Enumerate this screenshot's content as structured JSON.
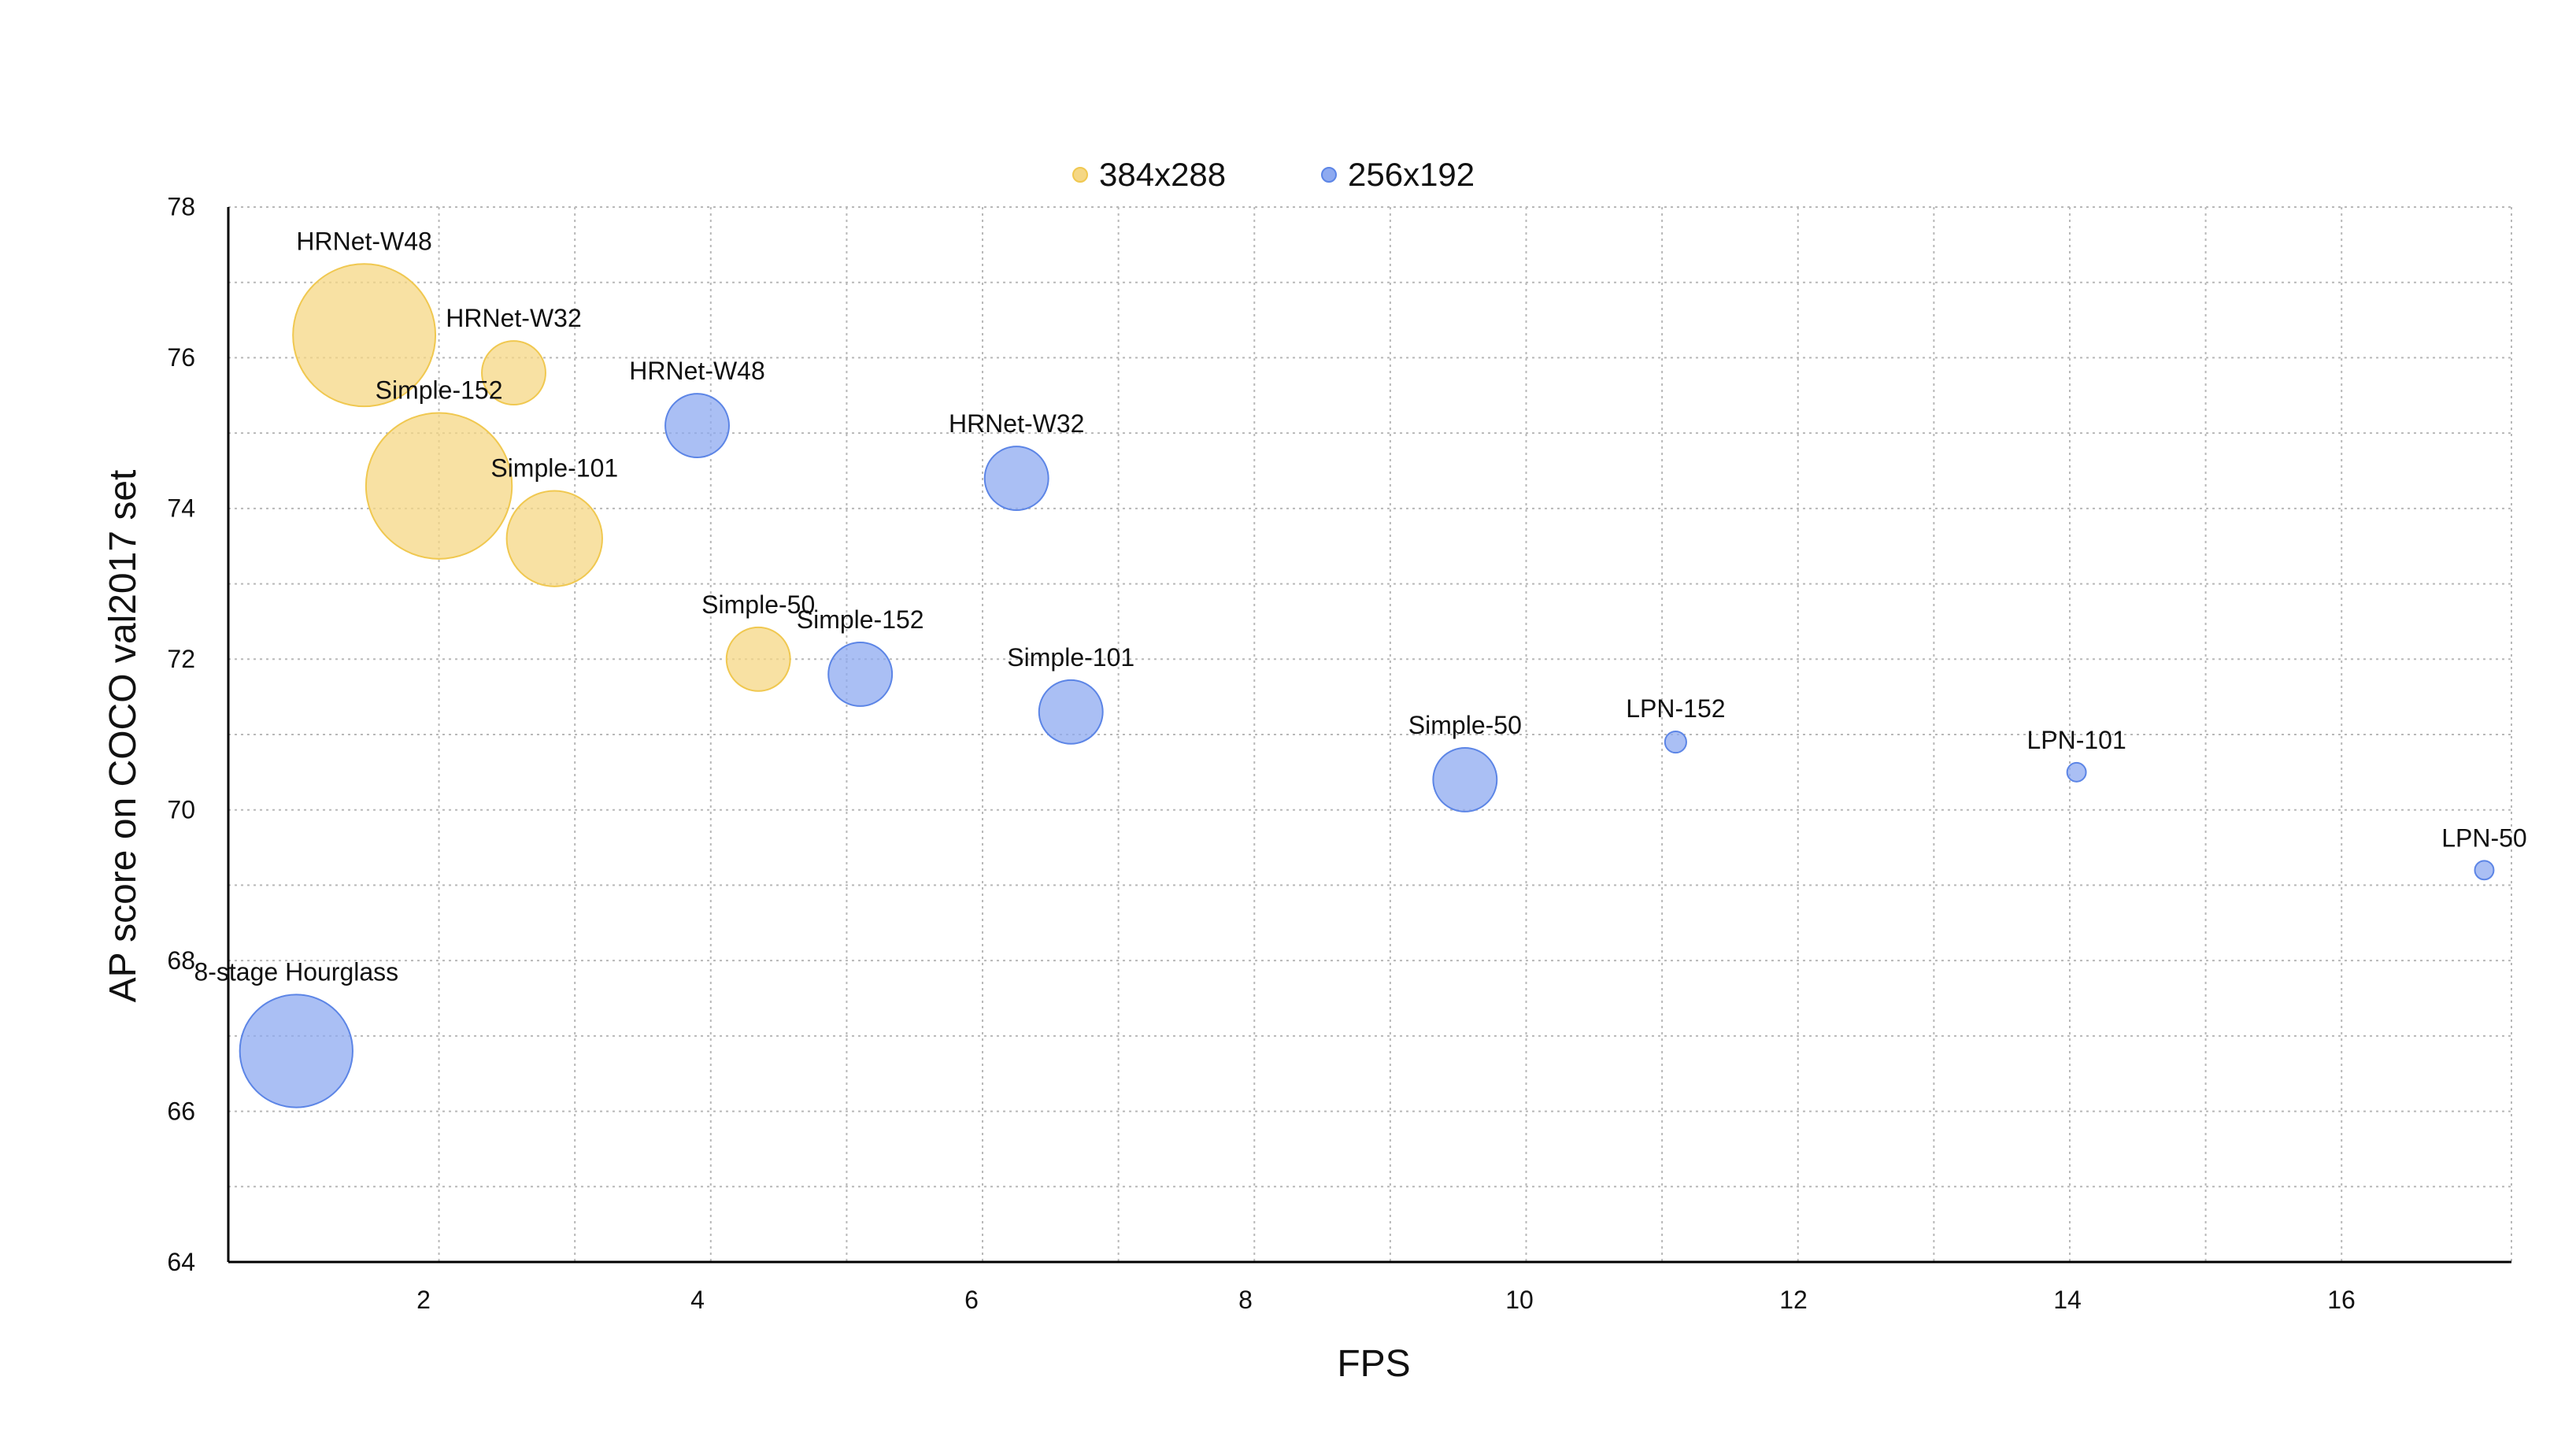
{
  "chart_data": {
    "type": "scatter",
    "subtype": "bubble",
    "xlabel": "FPS",
    "ylabel": "AP score on COCO val2017 set",
    "xlim": [
      0.45,
      17.25
    ],
    "ylim": [
      64,
      78
    ],
    "xticks": [
      2,
      4,
      6,
      8,
      10,
      12,
      14,
      16
    ],
    "yticks": [
      64,
      66,
      68,
      70,
      72,
      74,
      76,
      78
    ],
    "grid": true,
    "legend": "top-center",
    "series": [
      {
        "name": "384x288",
        "color": "#f5d784",
        "stroke": "#f0c850",
        "points": [
          {
            "label": "HRNet-W48",
            "x": 1.45,
            "y": 76.3,
            "size": 40
          },
          {
            "label": "HRNet-W32",
            "x": 2.55,
            "y": 75.8,
            "size": 8
          },
          {
            "label": "Simple-152",
            "x": 2.0,
            "y": 74.3,
            "size": 42
          },
          {
            "label": "Simple-101",
            "x": 2.85,
            "y": 73.6,
            "size": 18
          },
          {
            "label": "Simple-50",
            "x": 4.35,
            "y": 72.0,
            "size": 8
          }
        ]
      },
      {
        "name": "256x192",
        "color": "#8eaaf0",
        "stroke": "#5c85e6",
        "points": [
          {
            "label": "HRNet-W48",
            "x": 3.9,
            "y": 75.1,
            "size": 8
          },
          {
            "label": "HRNet-W32",
            "x": 6.25,
            "y": 74.4,
            "size": 8
          },
          {
            "label": "Simple-152",
            "x": 5.1,
            "y": 71.8,
            "size": 8
          },
          {
            "label": "Simple-101",
            "x": 6.65,
            "y": 71.3,
            "size": 8
          },
          {
            "label": "Simple-50",
            "x": 9.55,
            "y": 70.4,
            "size": 8
          },
          {
            "label": "LPN-152",
            "x": 11.1,
            "y": 70.9,
            "size": 0.9
          },
          {
            "label": "LPN-101",
            "x": 14.05,
            "y": 70.5,
            "size": 0.7
          },
          {
            "label": "LPN-50",
            "x": 17.05,
            "y": 69.2,
            "size": 0.7
          },
          {
            "label": "8-stage Hourglass",
            "x": 0.95,
            "y": 66.8,
            "size": 25.1
          }
        ]
      }
    ]
  }
}
